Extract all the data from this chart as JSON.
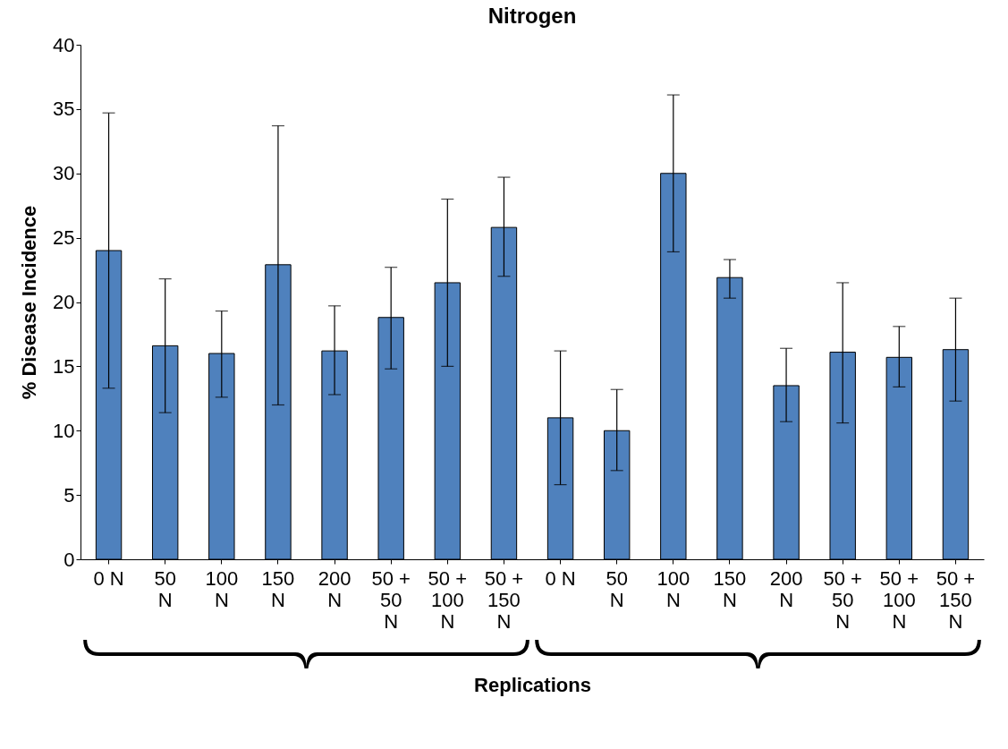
{
  "chart_data": {
    "type": "bar",
    "title": "Nitrogen",
    "xlabel": "Replications",
    "ylabel": "% Disease  Incidence",
    "categories": [
      "0 N",
      "50 N",
      "100 N",
      "150 N",
      "200 N",
      "50 + 50 N",
      "50 + 100 N",
      "50 + 150 N",
      "0 N",
      "50 N",
      "100 N",
      "150 N",
      "200 N",
      "50 + 50 N",
      "50 + 100 N",
      "50 + 150 N"
    ],
    "values": [
      24,
      16.6,
      16,
      22.9,
      16.2,
      18.8,
      21.5,
      25.8,
      11,
      10,
      30,
      21.9,
      13.5,
      16.1,
      15.7,
      16.3
    ],
    "errors": [
      [
        13.3,
        34.7
      ],
      [
        11.4,
        21.8
      ],
      [
        12.6,
        19.3
      ],
      [
        12,
        33.7
      ],
      [
        12.8,
        19.7
      ],
      [
        14.8,
        22.7
      ],
      [
        15,
        28
      ],
      [
        22,
        29.7
      ],
      [
        5.8,
        16.2
      ],
      [
        6.9,
        13.2
      ],
      [
        23.9,
        36.1
      ],
      [
        20.3,
        23.3
      ],
      [
        10.7,
        16.4
      ],
      [
        10.6,
        21.5
      ],
      [
        13.4,
        18.1
      ],
      [
        12.3,
        20.3
      ]
    ],
    "color": "#4f81bd",
    "ylim": [
      0,
      40
    ],
    "yticks": [
      0,
      5,
      10,
      15,
      20,
      25,
      30,
      35,
      40
    ],
    "grid": false
  }
}
